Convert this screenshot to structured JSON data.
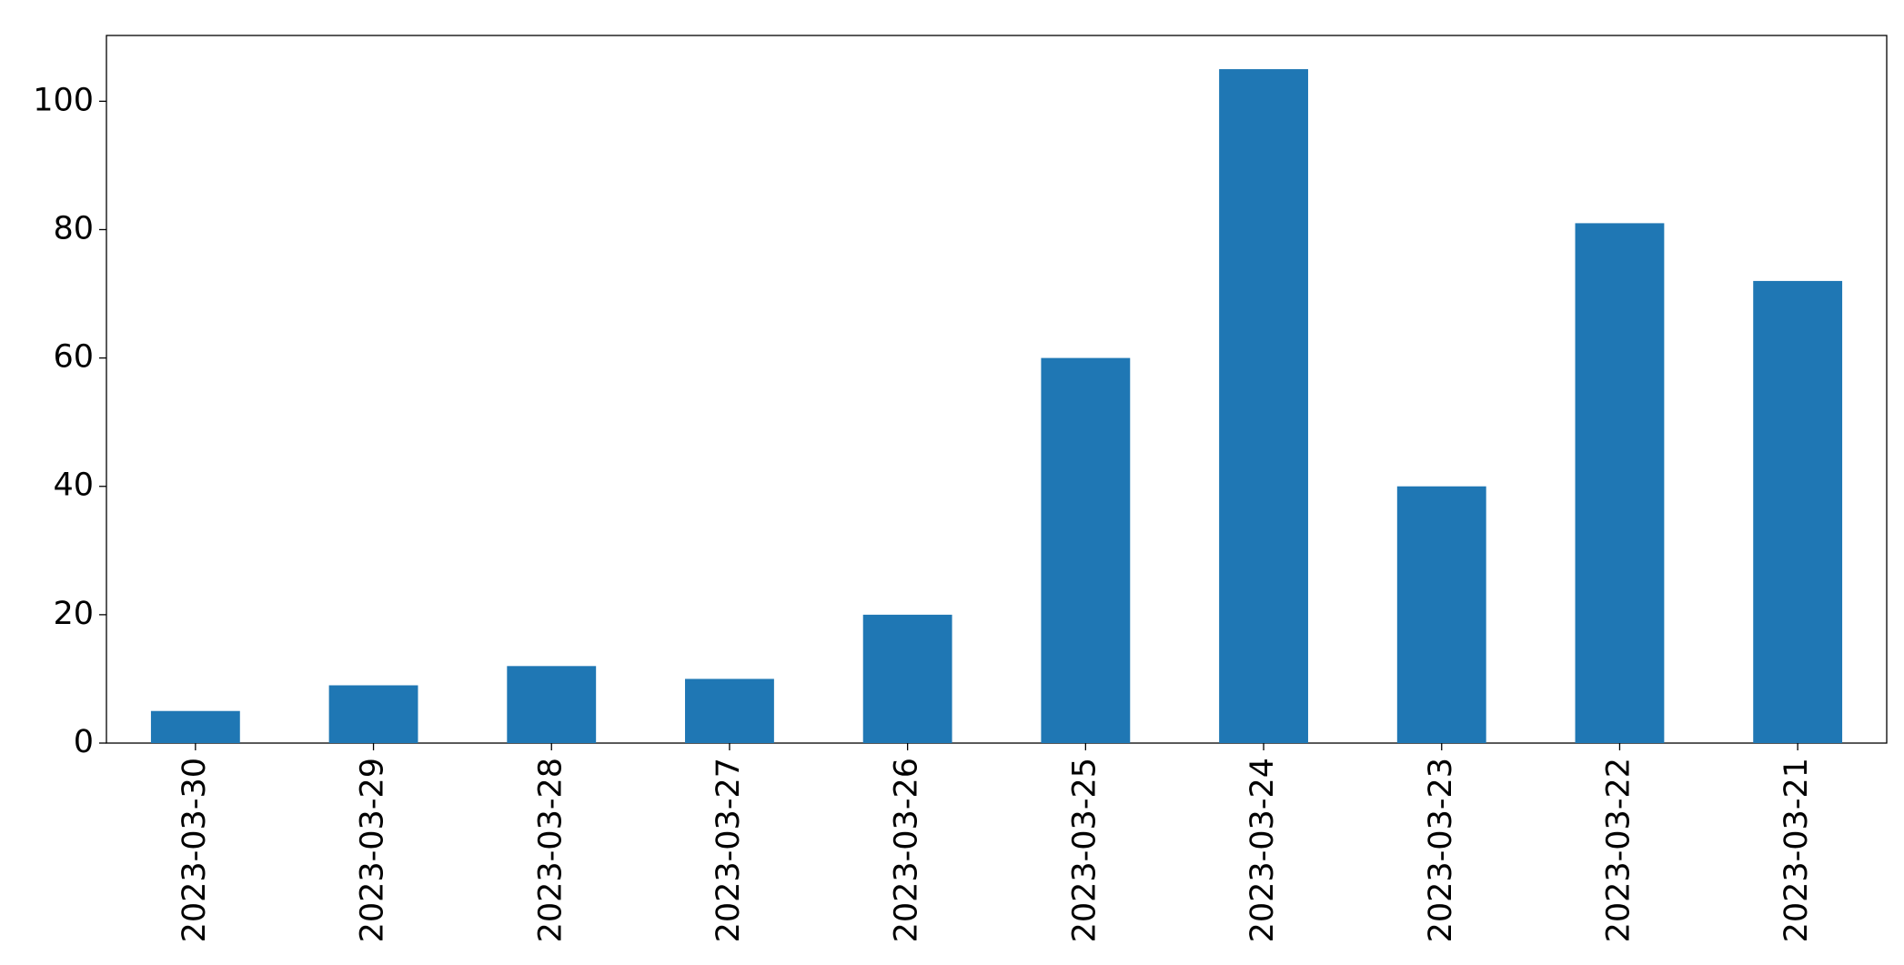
{
  "chart_data": {
    "type": "bar",
    "categories": [
      "2023-03-30",
      "2023-03-29",
      "2023-03-28",
      "2023-03-27",
      "2023-03-26",
      "2023-03-25",
      "2023-03-24",
      "2023-03-23",
      "2023-03-22",
      "2023-03-21"
    ],
    "values": [
      5,
      9,
      12,
      10,
      20,
      60,
      105,
      40,
      81,
      72
    ],
    "color": "#1f77b4",
    "ylim": [
      0,
      110.25
    ],
    "yticks": [
      0,
      20,
      40,
      60,
      80,
      100
    ],
    "grid": false
  }
}
